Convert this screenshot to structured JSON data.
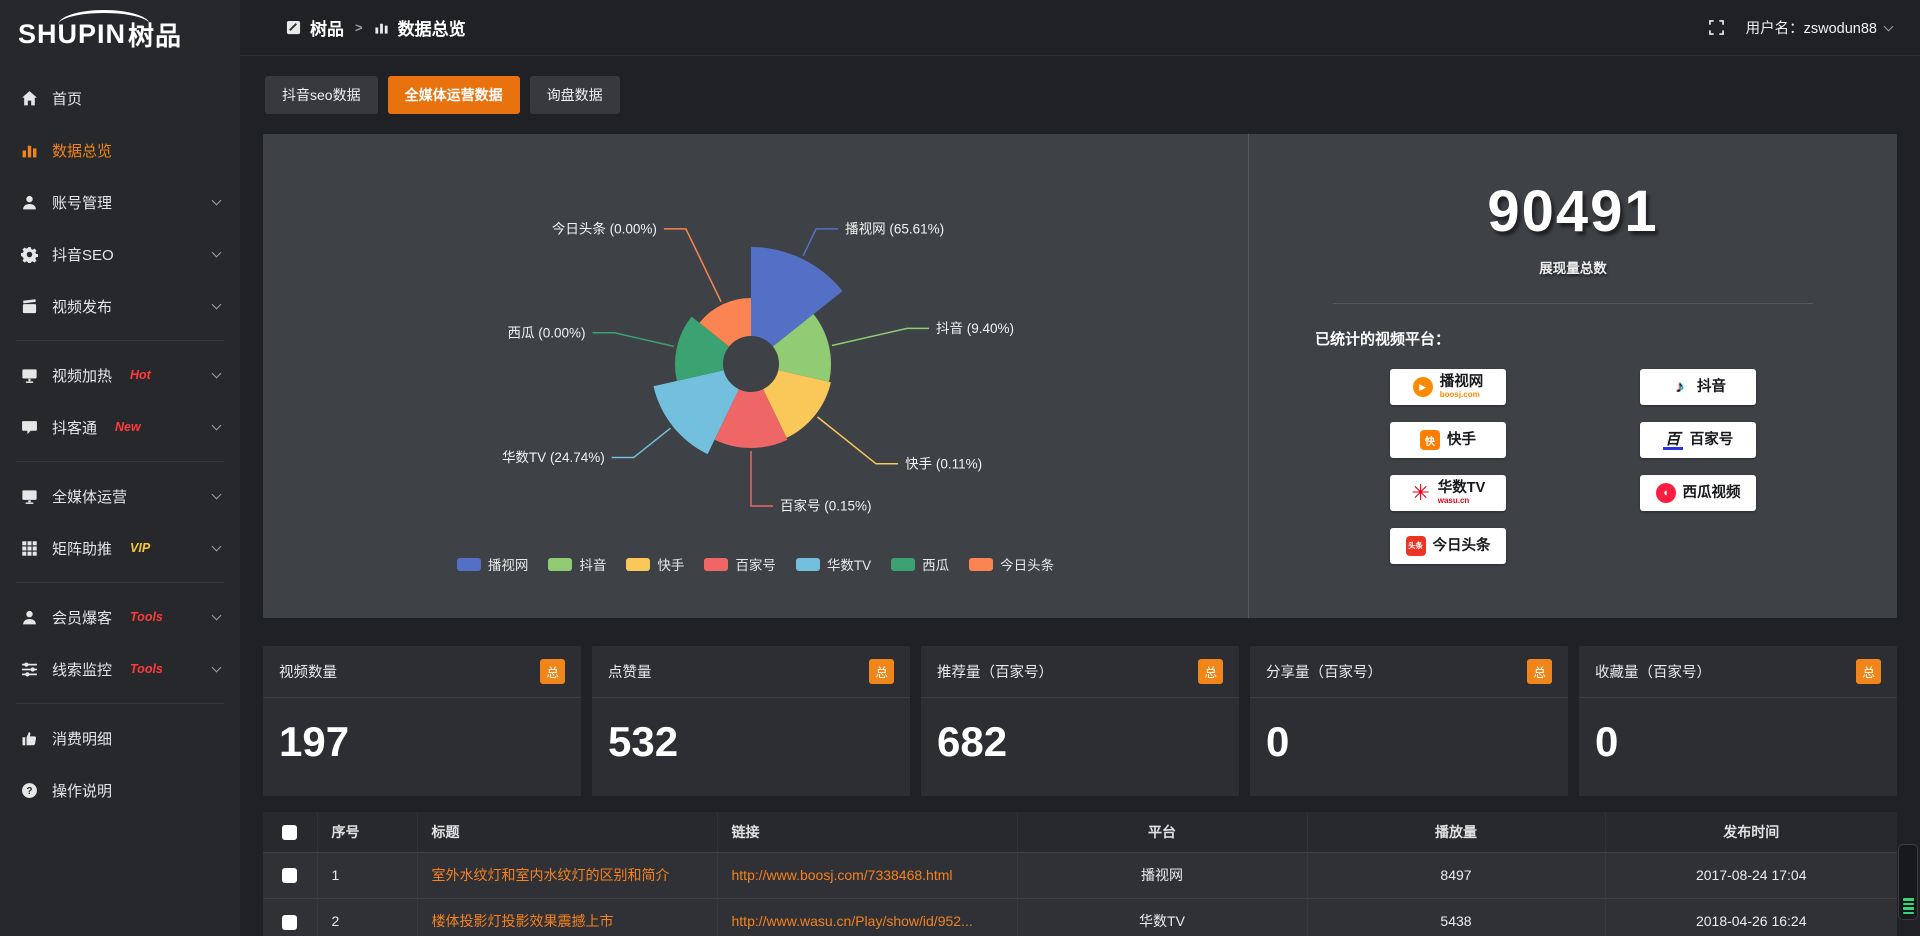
{
  "header": {
    "breadcrumb": [
      {
        "label": "树品"
      },
      {
        "label": "数据总览"
      }
    ],
    "breadcrumb_sep": ">",
    "username": "用户名：zswodun88"
  },
  "sidebar": {
    "logo_text": "SHUPIN",
    "logo_suffix": "树品",
    "items": [
      {
        "label": "首页",
        "icon": "home"
      },
      {
        "label": "数据总览",
        "icon": "bar-chart",
        "active": true
      },
      {
        "label": "账号管理",
        "icon": "user",
        "chevron": true
      },
      {
        "label": "抖音SEO",
        "icon": "gear",
        "chevron": true
      },
      {
        "label": "视频发布",
        "icon": "video-upload",
        "chevron": true
      },
      {
        "divider": true
      },
      {
        "label": "视频加热",
        "icon": "screen",
        "badge": "Hot",
        "badge_color": "#ff3b3b",
        "chevron": true
      },
      {
        "label": "抖客通",
        "icon": "chat",
        "badge": "New",
        "badge_color": "#ff3b3b",
        "chevron": true
      },
      {
        "divider": true
      },
      {
        "label": "全媒体运营",
        "icon": "monitor",
        "chevron": true
      },
      {
        "label": "矩阵助推",
        "icon": "grid",
        "badge": "VIP",
        "badge_color": "#f7c53f",
        "chevron": true
      },
      {
        "divider": true
      },
      {
        "label": "会员爆客",
        "icon": "user",
        "badge": "Tools",
        "badge_color": "#ff3b3b",
        "chevron": true
      },
      {
        "label": "线索监控",
        "icon": "sliders",
        "badge": "Tools",
        "badge_color": "#ff3b3b",
        "chevron": true
      },
      {
        "divider": true
      },
      {
        "label": "消费明细",
        "icon": "like"
      },
      {
        "label": "操作说明",
        "icon": "question"
      }
    ]
  },
  "tabs": [
    {
      "label": "抖音seo数据"
    },
    {
      "label": "全媒体运营数据",
      "active": true
    },
    {
      "label": "询盘数据"
    }
  ],
  "chart_data": {
    "type": "pie",
    "subtype": "nightingale-rose",
    "title": "",
    "unit": "percent",
    "inner_radius": 28,
    "start_angle_deg": 0,
    "direction": "clockwise-from-top",
    "legend_position": "bottom",
    "items": [
      {
        "name": "播视网",
        "value": 65.61,
        "label": "播视网 (65.61%)",
        "color": "#5470c6",
        "radius": 117,
        "label_r": 150
      },
      {
        "name": "抖音",
        "value": 9.4,
        "label": "抖音 (9.40%)",
        "color": "#91cc75",
        "radius": 80,
        "label_r": 160
      },
      {
        "name": "快手",
        "value": 0.11,
        "label": "快手 (0.11%)",
        "color": "#fac858",
        "radius": 82,
        "label_r": 160
      },
      {
        "name": "百家号",
        "value": 0.15,
        "label": "百家号 (0.15%)",
        "color": "#ee6666",
        "radius": 84,
        "label_r": 142
      },
      {
        "name": "华数TV",
        "value": 24.74,
        "label": "华数TV (24.74%)",
        "color": "#73c0de",
        "radius": 100,
        "label_r": 150
      },
      {
        "name": "西瓜",
        "value": 0.0,
        "label": "西瓜 (0.00%)",
        "color": "#3ba272",
        "radius": 76,
        "label_r": 140
      },
      {
        "name": "今日头条",
        "value": 0.0,
        "label": "今日头条 (0.00%)",
        "color": "#fc8452",
        "radius": 66,
        "label_r": 150
      }
    ]
  },
  "summary": {
    "total_value": "90491",
    "total_label": "展现量总数",
    "platforms_title": "已统计的视频平台：",
    "platforms": [
      {
        "name": "播视网",
        "sub": "boosj.com",
        "icon": "boosj-logo",
        "accent": "#ff8a00"
      },
      {
        "name": "抖音",
        "sub": "",
        "icon": "douyin-logo",
        "accent": "#161823"
      },
      {
        "name": "快手",
        "sub": "",
        "icon": "kuaishou-logo",
        "accent": "#ff7e00"
      },
      {
        "name": "百家号",
        "sub": "",
        "icon": "baijiahao-logo",
        "accent": "#2932e1"
      },
      {
        "name": "华数TV",
        "sub": "wasu.cn",
        "icon": "wasu-logo",
        "accent": "#e60012"
      },
      {
        "name": "西瓜视频",
        "sub": "",
        "icon": "xigua-logo",
        "accent": "#fa1f41"
      },
      {
        "name": "今日头条",
        "sub": "",
        "icon": "toutiao-logo",
        "accent": "#ed3321"
      }
    ]
  },
  "stat_cards": [
    {
      "label": "视频数量",
      "badge": "总",
      "value": "197"
    },
    {
      "label": "点赞量",
      "badge": "总",
      "value": "532"
    },
    {
      "label": "推荐量（百家号）",
      "badge": "总",
      "value": "682"
    },
    {
      "label": "分享量（百家号）",
      "badge": "总",
      "value": "0"
    },
    {
      "label": "收藏量（百家号）",
      "badge": "总",
      "value": "0"
    }
  ],
  "table": {
    "headers": [
      "序号",
      "标题",
      "链接",
      "平台",
      "播放量",
      "发布时间"
    ],
    "rows": [
      {
        "no": "1",
        "title": "室外水纹灯和室内水纹灯的区别和简介",
        "link": "http://www.boosj.com/7338468.html",
        "platform": "播视网",
        "plays": "8497",
        "time": "2017-08-24 17:04"
      },
      {
        "no": "2",
        "title": "楼体投影灯投影效果震撼上市",
        "link": "http://www.wasu.cn/Play/show/id/952...",
        "platform": "华数TV",
        "plays": "5438",
        "time": "2018-04-26 16:24"
      }
    ]
  },
  "colors": {
    "accent_orange": "#e8730e",
    "badge_orange": "#f08519",
    "link_orange": "#f5821f"
  }
}
